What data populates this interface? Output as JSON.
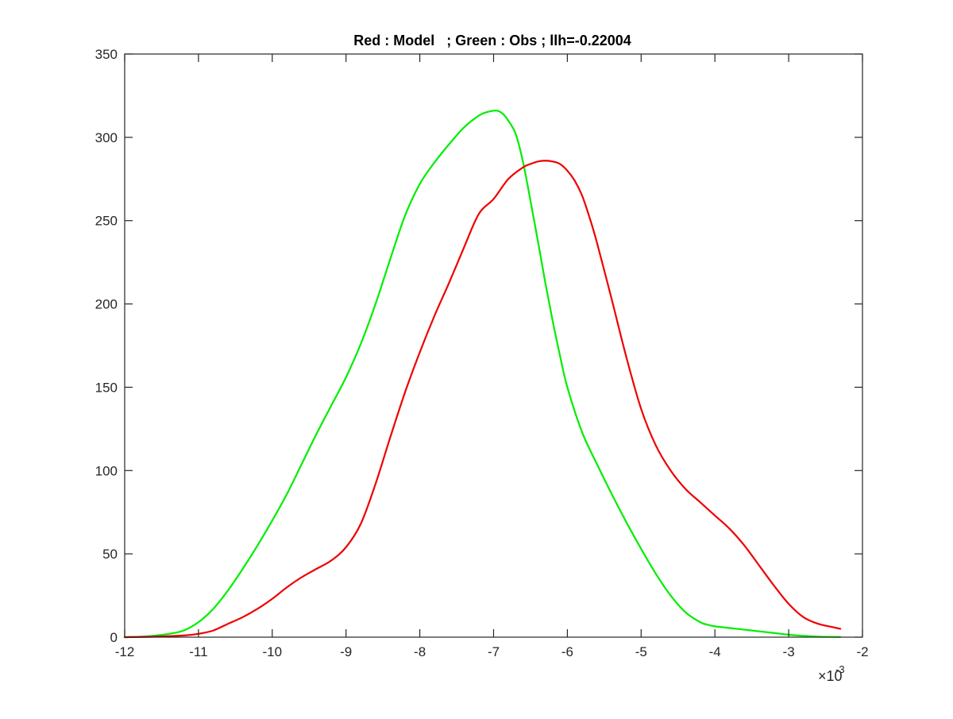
{
  "chart_data": {
    "type": "line",
    "title": "Red : Model   ; Green : Obs ; llh=-0.22004",
    "xlabel": "",
    "ylabel": "",
    "xlim": [
      -12,
      -2
    ],
    "ylim": [
      0,
      350
    ],
    "x_multiplier": {
      "base": "×10",
      "exponent": "-3"
    },
    "x_ticks": [
      -12,
      -11,
      -10,
      -9,
      -8,
      -7,
      -6,
      -5,
      -4,
      -3,
      -2
    ],
    "x_tick_labels": [
      "-12",
      "-11",
      "-10",
      "-9",
      "-8",
      "-7",
      "-6",
      "-5",
      "-4",
      "-3",
      "-2"
    ],
    "y_ticks": [
      0,
      50,
      100,
      150,
      200,
      250,
      300,
      350
    ],
    "y_tick_labels": [
      "0",
      "50",
      "100",
      "150",
      "200",
      "250",
      "300",
      "350"
    ],
    "grid": false,
    "legend": "none",
    "series": [
      {
        "color": "#00ee00",
        "x": [
          -12,
          -11.7,
          -11.4,
          -11.2,
          -11,
          -10.8,
          -10.6,
          -10.4,
          -10.2,
          -10,
          -9.8,
          -9.6,
          -9.4,
          -9.2,
          -9,
          -8.8,
          -8.6,
          -8.4,
          -8.2,
          -8,
          -7.8,
          -7.6,
          -7.4,
          -7.2,
          -7.1,
          -7,
          -6.95,
          -6.9,
          -6.85,
          -6.8,
          -6.7,
          -6.6,
          -6.5,
          -6.4,
          -6.3,
          -6.2,
          -6.1,
          -6,
          -5.8,
          -5.6,
          -5.4,
          -5.2,
          -5,
          -4.8,
          -4.6,
          -4.4,
          -4.2,
          -4.1,
          -4,
          -3.8,
          -3.6,
          -3.4,
          -3.2,
          -3,
          -2.8,
          -2.6,
          -2.5,
          -2.3
        ],
        "y": [
          0,
          0.5,
          2,
          4,
          9,
          17,
          28,
          41,
          55,
          70,
          86,
          104,
          122,
          139,
          156,
          176,
          200,
          227,
          253,
          272,
          285,
          296,
          306,
          313,
          315,
          316,
          316,
          315,
          313,
          310,
          302,
          285,
          262,
          238,
          213,
          190,
          169,
          150,
          123,
          104,
          86,
          69,
          53,
          38,
          25,
          15,
          9,
          7.5,
          6.5,
          5.5,
          4.5,
          3.5,
          2.5,
          1.5,
          0.8,
          0.3,
          0.2,
          0.1
        ]
      },
      {
        "color": "#ee0000",
        "x": [
          -12,
          -11.6,
          -11.2,
          -11,
          -10.8,
          -10.6,
          -10.4,
          -10.2,
          -10,
          -9.8,
          -9.6,
          -9.4,
          -9.2,
          -9,
          -8.8,
          -8.6,
          -8.4,
          -8.2,
          -8,
          -7.8,
          -7.6,
          -7.4,
          -7.2,
          -7,
          -6.8,
          -6.6,
          -6.5,
          -6.4,
          -6.3,
          -6.2,
          -6.1,
          -6,
          -5.9,
          -5.8,
          -5.7,
          -5.6,
          -5.4,
          -5.2,
          -5,
          -4.8,
          -4.6,
          -4.4,
          -4.2,
          -4,
          -3.8,
          -3.6,
          -3.4,
          -3.2,
          -3,
          -2.8,
          -2.6,
          -2.4,
          -2.3
        ],
        "y": [
          0,
          0.3,
          1,
          2,
          4,
          8,
          12,
          17,
          23,
          30,
          36,
          41,
          46,
          54,
          68,
          92,
          120,
          147,
          171,
          193,
          213,
          234,
          254,
          263,
          275,
          282,
          284,
          285.5,
          286,
          285.5,
          284,
          280,
          274,
          265,
          252,
          237,
          203,
          168,
          137,
          115,
          100,
          89,
          81,
          73,
          65,
          55,
          43,
          31,
          20,
          12,
          8,
          6,
          5
        ]
      }
    ]
  }
}
